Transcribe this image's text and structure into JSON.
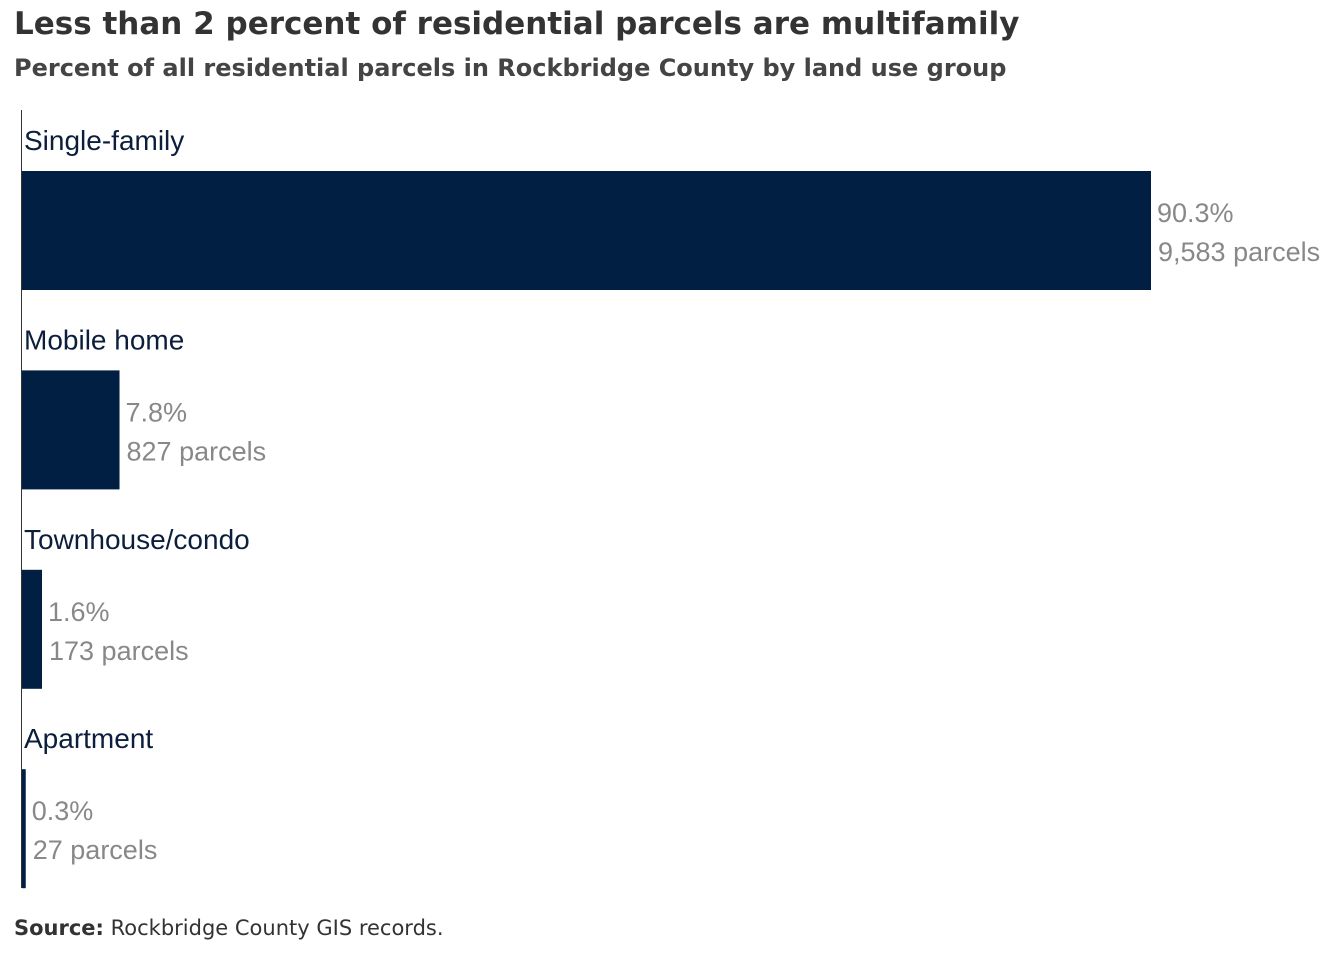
{
  "title": "Less than 2 percent of residential parcels are multifamily",
  "subtitle": "Percent of all residential parcels in Rockbridge County by land use group",
  "source": {
    "label": "Source:",
    "text": " Rockbridge  County GIS records."
  },
  "colors": {
    "bar": "#001f42",
    "category_label": "#0b1e3c",
    "value_label": "#888888",
    "axis": "#333333"
  },
  "chart_data": {
    "type": "bar",
    "orientation": "horizontal",
    "categories": [
      "Single-family",
      "Mobile home",
      "Townhouse/condo",
      "Apartment"
    ],
    "values": [
      90.3,
      7.8,
      1.6,
      0.3
    ],
    "value_labels": [
      "90.3%",
      "7.8%",
      "1.6%",
      "0.3%"
    ],
    "parcels": [
      9583,
      827,
      173,
      27
    ],
    "parcel_labels": [
      "9,583 parcels",
      "827 parcels",
      "173 parcels",
      "27 parcels"
    ],
    "title": "Less than 2 percent of residential parcels are multifamily",
    "subtitle": "Percent of all residential parcels in Rockbridge County by land use group",
    "xlabel": "",
    "ylabel": "",
    "xlim": [
      0,
      90.3
    ],
    "grid": false,
    "legend": "none"
  }
}
